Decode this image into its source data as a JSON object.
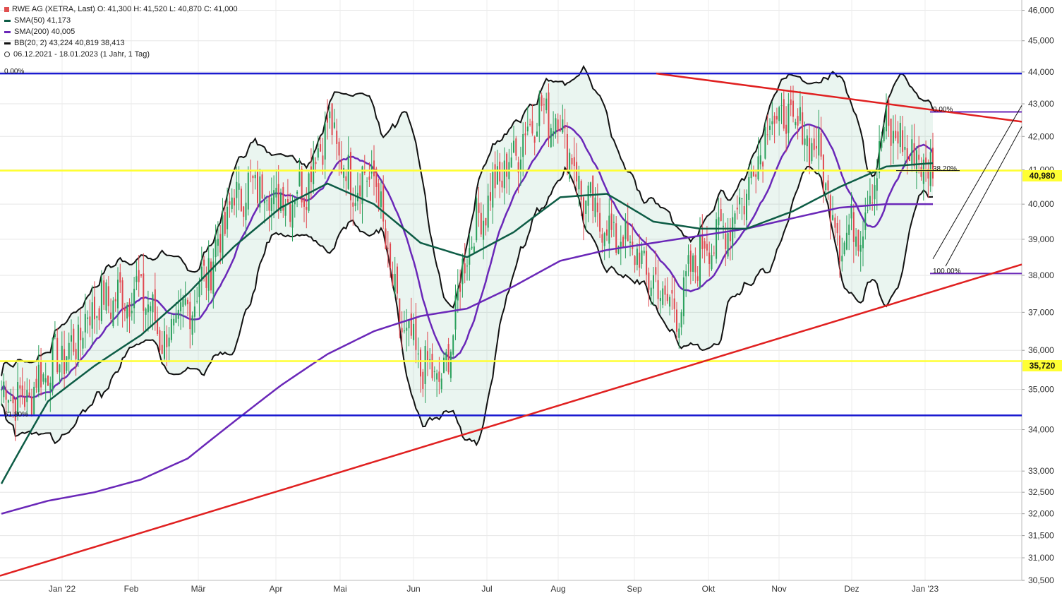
{
  "header": {
    "title": "RWE AG (XETRA, Last)",
    "o": "O: 41,300",
    "h": "H: 41,520",
    "l": "L: 40,870",
    "c": "C: 41,000"
  },
  "legend": [
    {
      "label": "SMA(50)",
      "values": "41,173",
      "color": "#0d5c45"
    },
    {
      "label": "SMA(200)",
      "values": "40,005",
      "color": "#6a27b8"
    },
    {
      "label": "BB(20, 2)",
      "values": "43,224  40,819  38,413",
      "color": "#111111"
    }
  ],
  "range_text": "06.12.2021 - 18.01.2023  (1 Jahr, 1 Tag)",
  "price_tags": [
    {
      "label": "40,980",
      "color": "#ffff33"
    },
    {
      "label": "35,720",
      "color": "#ffff33"
    }
  ],
  "fib_labels": [
    "0.00%",
    "61.80%",
    "0.00%",
    "38.20%",
    "100.00%"
  ],
  "chart_data": {
    "type": "line",
    "title": "RWE AG (XETRA, Last)",
    "x_ticks": [
      "Jan '22",
      "Feb",
      "Mär",
      "Apr",
      "Mai",
      "Jun",
      "Jul",
      "Aug",
      "Sep",
      "Okt",
      "Nov",
      "Dez",
      "Jan '23"
    ],
    "y_ticks": [
      "30,500",
      "31,000",
      "31,500",
      "32,000",
      "32,500",
      "33,000",
      "34,000",
      "35,000",
      "36,000",
      "37,000",
      "38,000",
      "39,000",
      "40,000",
      "41,000",
      "42,000",
      "43,000",
      "44,000",
      "45,000",
      "46,000"
    ],
    "ylim": [
      30.5,
      46.2
    ],
    "y_scale": "log",
    "horizontal_lines": [
      {
        "name": "resistance",
        "value": 43.95,
        "color": "#1a1ad0"
      },
      {
        "name": "support",
        "value": 34.35,
        "color": "#1a1ad0"
      },
      {
        "name": "yellow-1",
        "value": 35.72,
        "color": "#ffff33"
      },
      {
        "name": "yellow-2",
        "value": 40.98,
        "color": "#ffff33"
      }
    ],
    "series": [
      {
        "name": "SMA(200)",
        "color": "#6a27b8",
        "x": [
          0,
          20,
          40,
          60,
          80,
          100,
          120,
          140,
          160,
          180,
          200,
          220,
          240,
          260,
          280,
          300,
          320,
          340,
          360,
          380,
          400
        ],
        "values": [
          32.0,
          32.3,
          32.5,
          32.8,
          33.3,
          34.2,
          35.1,
          35.9,
          36.5,
          36.9,
          37.1,
          37.7,
          38.4,
          38.7,
          38.9,
          39.1,
          39.3,
          39.6,
          39.9,
          40.0,
          40.0
        ]
      },
      {
        "name": "SMA(50)",
        "color": "#0d5c45",
        "x": [
          0,
          20,
          40,
          60,
          80,
          100,
          120,
          140,
          160,
          180,
          200,
          220,
          240,
          260,
          280,
          300,
          320,
          340,
          360,
          380,
          400
        ],
        "values": [
          32.7,
          34.7,
          35.6,
          36.4,
          37.5,
          38.8,
          39.9,
          40.6,
          40.0,
          38.9,
          38.5,
          39.2,
          40.2,
          40.3,
          39.5,
          39.3,
          39.3,
          39.8,
          40.5,
          41.1,
          41.2
        ]
      },
      {
        "name": "Price",
        "color": "#2a9d5c",
        "x": [
          0,
          10,
          20,
          30,
          40,
          50,
          60,
          70,
          80,
          90,
          100,
          110,
          120,
          130,
          140,
          150,
          160,
          170,
          180,
          190,
          200,
          210,
          220,
          230,
          240,
          250,
          260,
          270,
          280,
          290,
          300,
          310,
          320,
          330,
          340,
          350,
          360,
          370,
          380,
          390,
          400
        ],
        "values": [
          35.0,
          34.7,
          35.6,
          36.0,
          37.2,
          37.4,
          37.6,
          36.2,
          37.1,
          38.3,
          40.2,
          40.6,
          40.1,
          40.5,
          42.4,
          40.6,
          40.9,
          36.9,
          35.6,
          35.2,
          38.8,
          40.3,
          41.4,
          42.8,
          42.5,
          40.1,
          39.3,
          38.8,
          37.8,
          37.0,
          38.7,
          39.2,
          40.4,
          42.6,
          42.4,
          41.7,
          39.0,
          39.5,
          42.3,
          41.5,
          41.0
        ]
      }
    ]
  }
}
